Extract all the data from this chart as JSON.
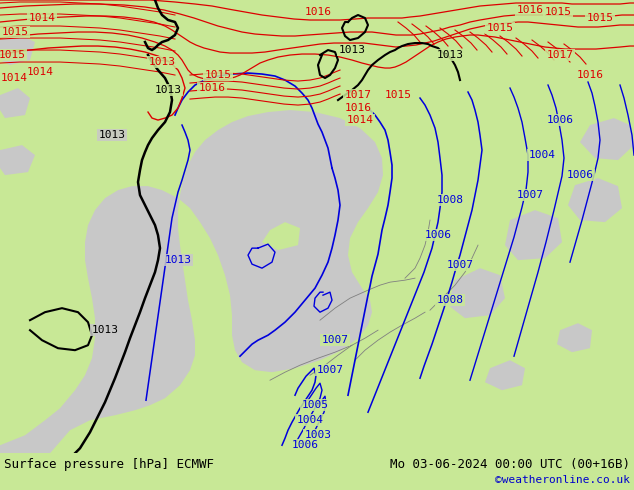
{
  "title_left": "Surface pressure [hPa] ECMWF",
  "title_right": "Mo 03-06-2024 00:00 UTC (00+16B)",
  "credit": "©weatheronline.co.uk",
  "bg_color": "#c8e896",
  "sea_color": "#c8c8c8",
  "land_color_grey": "#b0b0b0",
  "contour_blue": "#0000dd",
  "contour_red": "#dd0000",
  "contour_black": "#000000",
  "contour_grey": "#808080",
  "label_fontsize": 8,
  "title_fontsize": 9,
  "credit_fontsize": 8,
  "figsize": [
    6.34,
    4.9
  ],
  "dpi": 100
}
